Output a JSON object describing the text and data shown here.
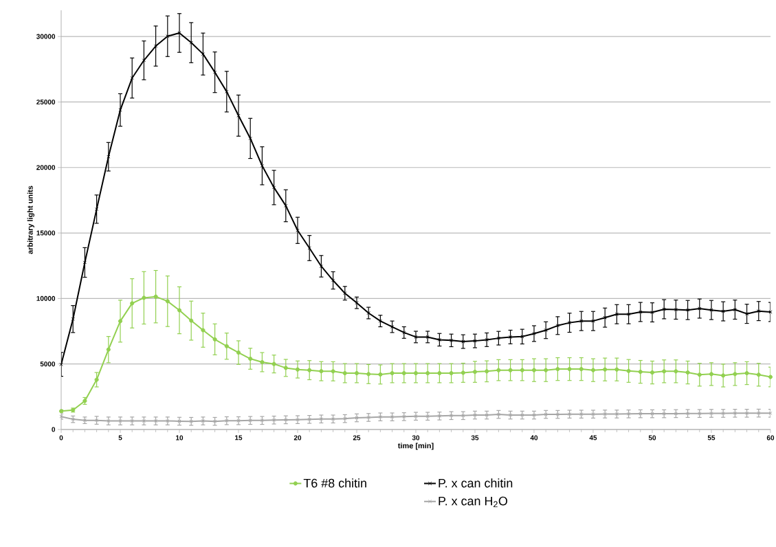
{
  "chart_data": {
    "type": "line",
    "xlabel": "time [min]",
    "ylabel": "arbitrary light units",
    "x": [
      0,
      1,
      2,
      3,
      4,
      5,
      6,
      7,
      8,
      9,
      10,
      11,
      12,
      13,
      14,
      15,
      16,
      17,
      18,
      19,
      20,
      21,
      22,
      23,
      24,
      25,
      26,
      27,
      28,
      29,
      30,
      31,
      32,
      33,
      34,
      35,
      36,
      37,
      38,
      39,
      40,
      41,
      42,
      43,
      44,
      45,
      46,
      47,
      48,
      49,
      50,
      51,
      52,
      53,
      54,
      55,
      56,
      57,
      58,
      59,
      60
    ],
    "xlim": [
      0,
      60
    ],
    "xticks": [
      0,
      5,
      10,
      15,
      20,
      25,
      30,
      35,
      40,
      45,
      50,
      55,
      60
    ],
    "ylim": [
      0,
      32000
    ],
    "yticks": [
      0,
      5000,
      10000,
      15000,
      20000,
      25000,
      30000
    ],
    "grid": "y",
    "legend": "bottom",
    "series": [
      {
        "name": "T6 #8 chitin",
        "color": "#92d050",
        "marker": "circle",
        "values": [
          1400,
          1480,
          2180,
          3800,
          6100,
          8270,
          9630,
          10050,
          10140,
          9790,
          9100,
          8310,
          7580,
          6880,
          6360,
          5870,
          5400,
          5140,
          5000,
          4700,
          4580,
          4530,
          4450,
          4440,
          4300,
          4300,
          4230,
          4200,
          4300,
          4300,
          4300,
          4300,
          4300,
          4300,
          4330,
          4400,
          4440,
          4530,
          4530,
          4530,
          4530,
          4530,
          4610,
          4610,
          4610,
          4530,
          4580,
          4580,
          4470,
          4400,
          4350,
          4440,
          4440,
          4350,
          4180,
          4230,
          4120,
          4230,
          4300,
          4180,
          4010
        ],
        "errors": [
          100,
          150,
          260,
          550,
          1000,
          1600,
          1880,
          2000,
          2000,
          1930,
          1790,
          1490,
          1300,
          1180,
          1000,
          900,
          800,
          730,
          680,
          650,
          650,
          730,
          730,
          730,
          730,
          730,
          730,
          730,
          730,
          730,
          730,
          730,
          730,
          730,
          730,
          800,
          800,
          800,
          800,
          800,
          870,
          870,
          870,
          870,
          870,
          870,
          870,
          870,
          870,
          870,
          870,
          870,
          870,
          870,
          870,
          870,
          870,
          870,
          870,
          870,
          750
        ]
      },
      {
        "name": "P. x can chitin",
        "color": "#000000",
        "marker": "cross",
        "values": [
          4970,
          8430,
          12750,
          16820,
          20820,
          24390,
          26830,
          28180,
          29270,
          30020,
          30270,
          29530,
          28660,
          27270,
          25790,
          23960,
          22220,
          20130,
          18470,
          17080,
          15200,
          13850,
          12460,
          11380,
          10400,
          9670,
          8890,
          8280,
          7840,
          7400,
          7060,
          7060,
          6850,
          6800,
          6710,
          6760,
          6850,
          6970,
          7060,
          7090,
          7320,
          7580,
          7930,
          8150,
          8280,
          8280,
          8540,
          8800,
          8800,
          8970,
          8940,
          9180,
          9150,
          9120,
          9230,
          9120,
          9020,
          9150,
          8830,
          9040,
          8970
        ],
        "errors": [
          910,
          1030,
          1130,
          1080,
          1090,
          1240,
          1530,
          1480,
          1530,
          1550,
          1480,
          1530,
          1600,
          1550,
          1550,
          1570,
          1530,
          1450,
          1310,
          1220,
          1000,
          960,
          820,
          660,
          520,
          440,
          440,
          440,
          440,
          440,
          440,
          440,
          480,
          480,
          520,
          520,
          520,
          520,
          520,
          560,
          600,
          640,
          680,
          730,
          730,
          730,
          730,
          730,
          730,
          730,
          730,
          730,
          730,
          730,
          730,
          730,
          730,
          730,
          730,
          730,
          730
        ]
      },
      {
        "name": "P. x can H$_{2}$O",
        "color": "#a6a6a6",
        "marker": "cross",
        "values": [
          990,
          780,
          700,
          700,
          650,
          650,
          650,
          650,
          650,
          650,
          630,
          620,
          650,
          620,
          670,
          670,
          690,
          690,
          720,
          740,
          750,
          770,
          800,
          800,
          830,
          890,
          920,
          960,
          960,
          980,
          1010,
          1010,
          1030,
          1060,
          1060,
          1100,
          1100,
          1150,
          1100,
          1100,
          1100,
          1150,
          1150,
          1170,
          1170,
          1170,
          1180,
          1180,
          1190,
          1200,
          1200,
          1200,
          1210,
          1220,
          1220,
          1230,
          1230,
          1240,
          1240,
          1250,
          1240
        ],
        "errors": [
          200,
          250,
          250,
          300,
          300,
          300,
          300,
          300,
          300,
          300,
          300,
          300,
          300,
          300,
          300,
          300,
          300,
          300,
          300,
          300,
          300,
          300,
          300,
          300,
          300,
          300,
          300,
          300,
          300,
          300,
          300,
          300,
          300,
          300,
          300,
          300,
          300,
          300,
          300,
          300,
          300,
          300,
          300,
          300,
          300,
          300,
          300,
          300,
          300,
          300,
          300,
          300,
          300,
          300,
          300,
          300,
          300,
          300,
          300,
          300,
          300
        ]
      }
    ]
  }
}
